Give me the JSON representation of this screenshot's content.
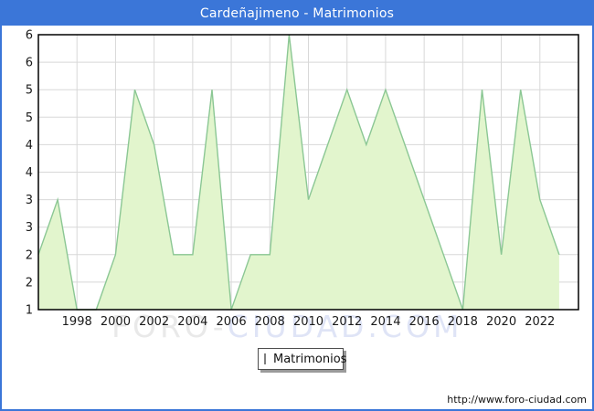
{
  "title": "Cardeñajimeno - Matrimonios",
  "legend": {
    "label": "Matrimonios"
  },
  "footer": {
    "url": "http://www.foro-ciudad.com"
  },
  "watermark": {
    "part1": "FORO-",
    "part2": "CIUDAD.COM"
  },
  "colors": {
    "titlebar_blue": "#3b76d8",
    "frame_border_blue": "#3b76d8",
    "area_fill": "#e2f5cd",
    "line_green": "#8bc794",
    "grid_gray": "#d8d8d8",
    "plot_border": "#000000",
    "legend_swatch": "#bdee9b",
    "axis_text": "#1a1a1a",
    "watermark_gray": "#e9e9e9",
    "watermark_blue": "#dfe4f6"
  },
  "chart_data": {
    "type": "area",
    "title": "Cardeñajimeno - Matrimonios",
    "series_name": "Matrimonios",
    "x": [
      1996,
      1997,
      1998,
      1999,
      2000,
      2001,
      2002,
      2003,
      2004,
      2005,
      2006,
      2007,
      2008,
      2009,
      2010,
      2011,
      2012,
      2013,
      2014,
      2015,
      2016,
      2017,
      2018,
      2019,
      2020,
      2021,
      2022,
      2023
    ],
    "values": [
      2,
      3,
      1,
      1,
      2,
      5,
      4,
      2,
      2,
      5,
      1,
      2,
      2,
      6,
      3,
      4,
      5,
      4,
      5,
      4,
      3,
      2,
      1,
      5,
      2,
      5,
      3,
      2
    ],
    "xlabel": "",
    "ylabel": "",
    "xlim": [
      1996,
      2024
    ],
    "ylim": [
      1,
      6
    ],
    "y_tick_step": 0.5,
    "y_tick_values": [
      6,
      5.5,
      5,
      4.5,
      4,
      3.5,
      3,
      2.5,
      2,
      1.5,
      1
    ],
    "y_tick_labels": [
      "6",
      "6",
      "5",
      "5",
      "4",
      "4",
      "3",
      "3",
      "2",
      "2",
      "1"
    ],
    "x_tick_values": [
      1998,
      2000,
      2002,
      2004,
      2006,
      2008,
      2010,
      2012,
      2014,
      2016,
      2018,
      2020,
      2022
    ],
    "x_tick_labels": [
      "1998",
      "2000",
      "2002",
      "2004",
      "2006",
      "2008",
      "2010",
      "2012",
      "2014",
      "2016",
      "2018",
      "2020",
      "2022"
    ],
    "grid": true,
    "legend_position": "bottom"
  }
}
